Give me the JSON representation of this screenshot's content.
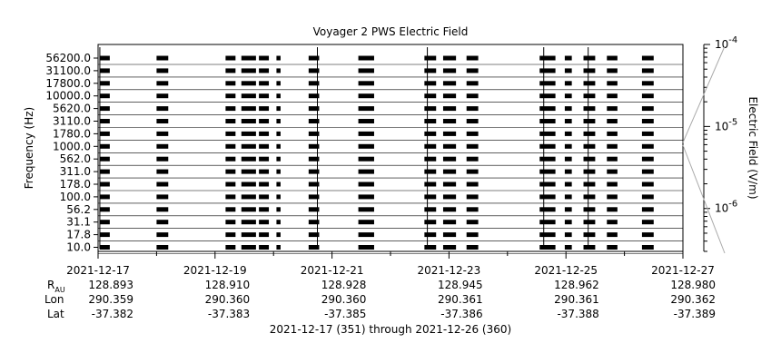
{
  "chart_data": {
    "type": "line",
    "title": "Voyager 2 PWS Electric Field",
    "ylabel": "Frequency (Hz)",
    "colorbar_label": "Electric Field (V/m)",
    "colorbar_ticks": [
      {
        "exp": "-4",
        "value": 0.0001
      },
      {
        "exp": "-5",
        "value": 1e-05
      },
      {
        "exp": "-6",
        "value": 1e-06
      }
    ],
    "colorbar_range": [
      3e-07,
      0.0001
    ],
    "channels": [
      "56200.0",
      "31100.0",
      "17800.0",
      "10000.0",
      "5620.0",
      "3110.0",
      "1780.0",
      "1000.0",
      "562.0",
      "311.0",
      "178.0",
      "100.0",
      "56.2",
      "31.1",
      "17.8",
      "10.0"
    ],
    "x_range": [
      "2021-12-17",
      "2021-12-27"
    ],
    "x_ticks": [
      "2021-12-17",
      "2021-12-19",
      "2021-12-21",
      "2021-12-23",
      "2021-12-25",
      "2021-12-27"
    ],
    "ephemeris": {
      "labels": {
        "r_main": "R",
        "r_sub": "AU",
        "lon": "Lon",
        "lat": "Lat"
      },
      "r": [
        "128.893",
        "128.910",
        "128.928",
        "128.945",
        "128.962",
        "128.980"
      ],
      "lon": [
        "290.359",
        "290.360",
        "290.360",
        "290.361",
        "290.361",
        "290.362"
      ],
      "lat": [
        "-37.382",
        "-37.383",
        "-37.385",
        "-37.386",
        "-37.388",
        "-37.389"
      ]
    },
    "footer": "2021-12-17 (351) through 2021-12-26 (360)",
    "data_segments_days": [
      [
        0.03,
        0.2
      ],
      [
        1.0,
        1.2
      ],
      [
        2.18,
        2.35
      ],
      [
        2.45,
        2.7
      ],
      [
        2.75,
        2.92
      ],
      [
        3.05,
        3.12
      ],
      [
        3.6,
        3.78
      ],
      [
        4.45,
        4.72
      ],
      [
        5.58,
        5.78
      ],
      [
        5.9,
        6.12
      ],
      [
        6.3,
        6.5
      ],
      [
        7.55,
        7.82
      ],
      [
        7.98,
        8.1
      ],
      [
        8.3,
        8.5
      ],
      [
        8.7,
        8.88
      ],
      [
        9.3,
        9.5
      ]
    ],
    "spikes_days": [
      0.03,
      3.75,
      5.63,
      7.62,
      8.38
    ]
  }
}
